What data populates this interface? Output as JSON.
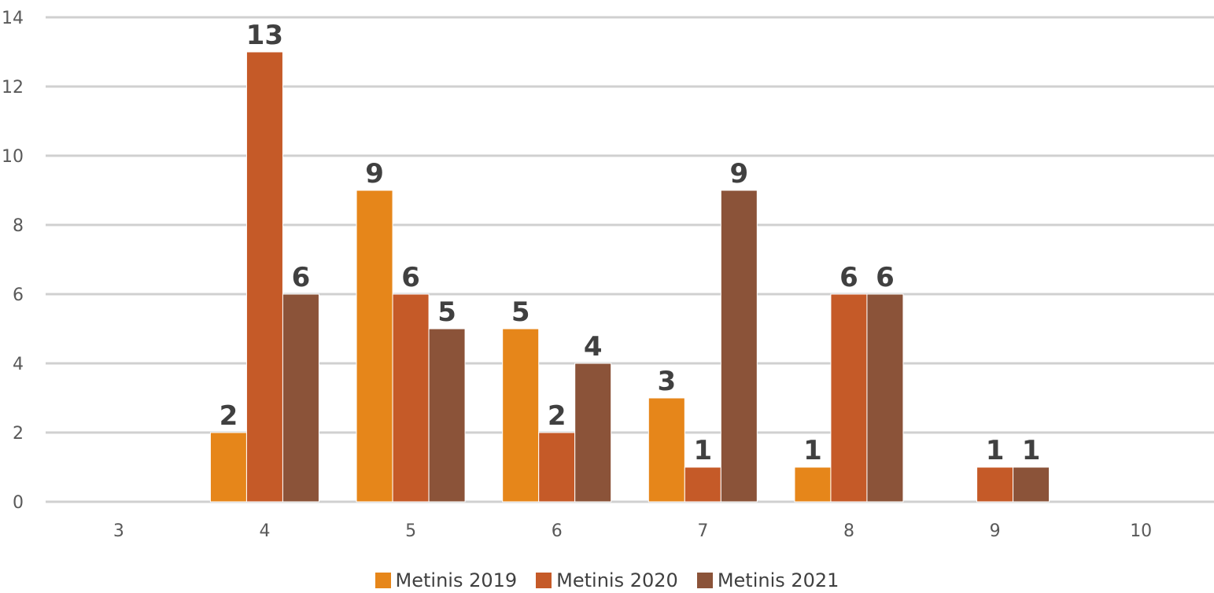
{
  "chart_data": {
    "type": "bar",
    "categories": [
      "3",
      "4",
      "5",
      "6",
      "7",
      "8",
      "9",
      "10"
    ],
    "series": [
      {
        "name": "Metinis 2019",
        "color": "#E6861A",
        "values": [
          0,
          2,
          9,
          5,
          3,
          1,
          0,
          0
        ]
      },
      {
        "name": "Metinis 2020",
        "color": "#C55A28",
        "values": [
          0,
          13,
          6,
          2,
          1,
          6,
          1,
          0
        ]
      },
      {
        "name": "Metinis 2021",
        "color": "#8B5339",
        "values": [
          0,
          6,
          5,
          4,
          9,
          6,
          1,
          0
        ]
      }
    ],
    "ylim": [
      0,
      14
    ],
    "yticks": [
      "0",
      "2",
      "4",
      "6",
      "8",
      "10",
      "12",
      "14"
    ],
    "grid": true,
    "legend_position": "bottom",
    "title": "",
    "xlabel": "",
    "ylabel": ""
  }
}
